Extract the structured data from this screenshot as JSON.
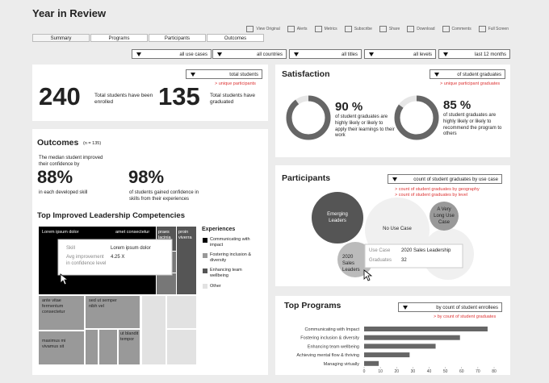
{
  "header": {
    "title": "Year in Review",
    "toolbar": [
      "View Original",
      "Alerts",
      "Metrics",
      "Subscribe",
      "Share",
      "Download",
      "Comments",
      "Full Screen"
    ],
    "tabs": [
      "Summary",
      "Programs",
      "Participants",
      "Outcomes"
    ],
    "filters": [
      "all use cases",
      "all countries",
      "all titles",
      "all levels",
      "last 12 months"
    ]
  },
  "enrollment": {
    "dropdown": "total students",
    "link": "> unique participants",
    "enrolled": {
      "value": 240,
      "text": "Total students have been enrolled"
    },
    "graduated": {
      "value": 135,
      "text": "Total students have graduated"
    }
  },
  "satisfaction": {
    "title": "Satisfaction",
    "dropdown": "of student graduates",
    "link": "> unique participant graduates",
    "items": [
      {
        "value": 90,
        "label": "90 %",
        "text": "of student graduates are highly likely or likely to apply their learnings to their work"
      },
      {
        "value": 85,
        "label": "85 %",
        "text": "of student graduates are highly likely or likely to recommend the program to others"
      }
    ]
  },
  "outcomes": {
    "title": "Outcomes",
    "n": "(n = 135)",
    "median_text": "The median student improved their confidence by",
    "stat1": {
      "value": "88%",
      "text": "in each developed skill"
    },
    "stat2": {
      "value": "98%",
      "text": "of students gained confidence in skills from their experiences"
    }
  },
  "competencies": {
    "title": "Top Improved Leadership Competencies",
    "cells": [
      "Lorem ipsum dolor",
      "amet consectetur",
      "praes lacinia",
      "proin viverra",
      "ante vitae fermentum consectetur",
      "sed ut semper nibh vel",
      "maximus mi vivamus sit",
      "ut blandit tempor"
    ],
    "legend_title": "Experiences",
    "legend": [
      "Communicating with impact",
      "Fostering inclusion & diversity",
      "Enhancing team wellbeing",
      "Other"
    ],
    "tooltip": {
      "skill_label": "Skill",
      "skill": "Lorem ipsum dolor",
      "metric_label": "Avg improvement in confidence level",
      "metric": "4.25 X"
    }
  },
  "participants": {
    "title": "Participants",
    "dropdown": "count of student graduates by use case",
    "links": [
      "> count of student graduates by geography",
      "> count of student graduates by level"
    ],
    "bubbles": [
      "Emerging Leaders",
      "No Use Case",
      "A Very Long Use Case",
      "2020 Sales Leaders"
    ],
    "tooltip": {
      "use_case_label": "Use Case",
      "use_case": "2020 Sales Leadership",
      "graduates_label": "Graduates",
      "graduates": 32
    }
  },
  "top_programs": {
    "title": "Top Programs",
    "dropdown": "by count of student enrollees",
    "link": "> by count of student graduates"
  },
  "chart_data": {
    "type": "bar",
    "categories": [
      "Communicating with Impact",
      "Fostering inclusion & diversity",
      "Enhancing team wellbeing",
      "Achieving mental flow & thriving",
      "Managing virtually"
    ],
    "values": [
      76,
      59,
      44,
      28,
      9
    ],
    "color": "#666666",
    "xlim": [
      0,
      80
    ],
    "xticks": [
      0,
      10,
      20,
      30,
      40,
      50,
      60,
      70,
      80
    ]
  }
}
